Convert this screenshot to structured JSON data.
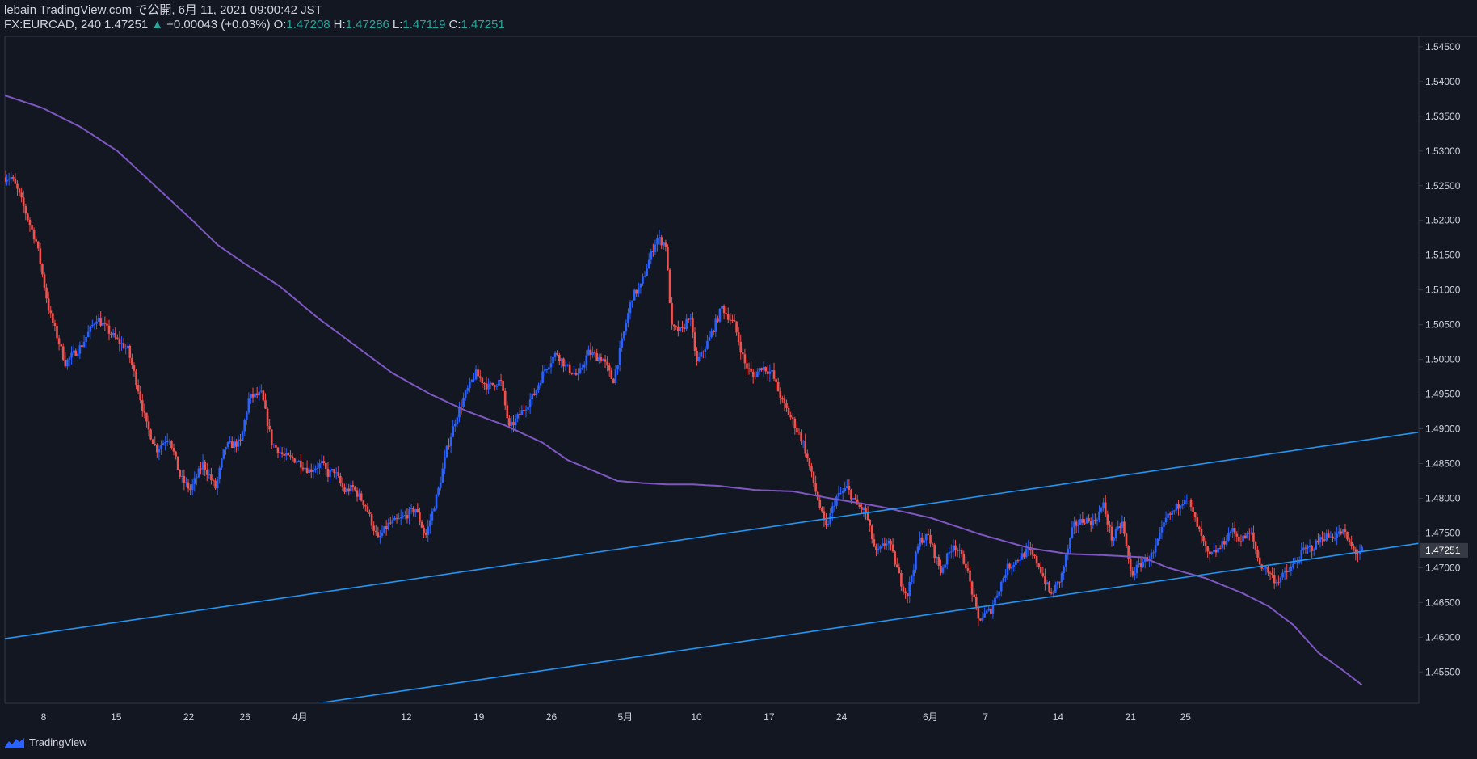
{
  "header": {
    "published": "lebain TradingView.com で公開, 6月 11, 2021 09:00:42 JST",
    "symbol": "FX:EURCAD, 240",
    "last": "1.47251",
    "change_arrow": "▲",
    "change": "+0.00043 (+0.03%)",
    "o_label": "O:",
    "o_value": "1.47208",
    "h_label": "H:",
    "h_value": "1.47286",
    "l_label": "L:",
    "l_value": "1.47119",
    "c_label": "C:",
    "c_value": "1.47251"
  },
  "footer": {
    "brand": "TradingView"
  },
  "colors": {
    "background": "#131722",
    "up": "#2962ff",
    "down": "#ef5350",
    "ma": "#7e57c2",
    "trendline": "#2196f3",
    "grid_border": "#363a45",
    "text": "#d1d4dc",
    "price_label_bg": "#363a45"
  },
  "chart_data": {
    "type": "candlestick",
    "symbol": "FX:EURCAD",
    "timeframe": "240",
    "y_ticks": [
      "1.54500",
      "1.54000",
      "1.53500",
      "1.53000",
      "1.52500",
      "1.52000",
      "1.51500",
      "1.51000",
      "1.50500",
      "1.50000",
      "1.49500",
      "1.49000",
      "1.48500",
      "1.48000",
      "1.47500",
      "1.47000",
      "1.46500",
      "1.46000",
      "1.45500"
    ],
    "y_range": [
      1.4505,
      1.5465
    ],
    "current_price_label": "1.47251",
    "x_ticks": [
      "8",
      "15",
      "22",
      "26",
      "4月",
      "12",
      "19",
      "26",
      "5月",
      "10",
      "17",
      "24",
      "6月",
      "7",
      "14",
      "21",
      "25"
    ],
    "x_range_days": [
      0,
      113
    ],
    "path_keypoints": [
      [
        0.0,
        1.5262
      ],
      [
        0.7,
        1.5262
      ],
      [
        1.3,
        1.5238
      ],
      [
        2.7,
        1.5168
      ],
      [
        3.7,
        1.507
      ],
      [
        5.0,
        1.4995
      ],
      [
        6.3,
        1.502
      ],
      [
        7.5,
        1.506
      ],
      [
        9.0,
        1.503
      ],
      [
        10.0,
        1.5014
      ],
      [
        10.8,
        1.496
      ],
      [
        11.5,
        1.4905
      ],
      [
        12.3,
        1.487
      ],
      [
        13.3,
        1.489
      ],
      [
        14.2,
        1.483
      ],
      [
        15.0,
        1.4812
      ],
      [
        16.0,
        1.485
      ],
      [
        17.0,
        1.4815
      ],
      [
        17.8,
        1.4875
      ],
      [
        19.0,
        1.488
      ],
      [
        19.7,
        1.4945
      ],
      [
        20.7,
        1.495
      ],
      [
        21.5,
        1.488
      ],
      [
        22.5,
        1.486
      ],
      [
        23.5,
        1.4855
      ],
      [
        24.5,
        1.484
      ],
      [
        25.5,
        1.485
      ],
      [
        26.0,
        1.4835
      ],
      [
        26.5,
        1.484
      ],
      [
        27.3,
        1.481
      ],
      [
        28.0,
        1.4815
      ],
      [
        29.0,
        1.479
      ],
      [
        30.0,
        1.474
      ],
      [
        30.8,
        1.4762
      ],
      [
        31.8,
        1.477
      ],
      [
        33.0,
        1.4785
      ],
      [
        33.8,
        1.4745
      ],
      [
        34.8,
        1.481
      ],
      [
        35.5,
        1.487
      ],
      [
        36.3,
        1.492
      ],
      [
        37.0,
        1.495
      ],
      [
        37.8,
        1.498
      ],
      [
        38.8,
        1.496
      ],
      [
        39.8,
        1.497
      ],
      [
        40.5,
        1.49
      ],
      [
        41.5,
        1.4925
      ],
      [
        42.5,
        1.495
      ],
      [
        43.3,
        1.4985
      ],
      [
        44.3,
        1.501
      ],
      [
        45.0,
        1.499
      ],
      [
        46.0,
        1.4975
      ],
      [
        46.8,
        1.501
      ],
      [
        48.0,
        1.5
      ],
      [
        48.8,
        1.4968
      ],
      [
        49.5,
        1.5025
      ],
      [
        50.3,
        1.509
      ],
      [
        51.0,
        1.5105
      ],
      [
        51.8,
        1.515
      ],
      [
        52.3,
        1.5175
      ],
      [
        53.0,
        1.5165
      ],
      [
        53.5,
        1.5045
      ],
      [
        54.3,
        1.504
      ],
      [
        54.9,
        1.5065
      ],
      [
        55.5,
        1.4995
      ],
      [
        56.5,
        1.503
      ],
      [
        57.5,
        1.5075
      ],
      [
        58.5,
        1.505
      ],
      [
        59.3,
        1.4995
      ],
      [
        60.0,
        1.4975
      ],
      [
        60.7,
        1.499
      ],
      [
        61.5,
        1.498
      ],
      [
        62.3,
        1.494
      ],
      [
        63.2,
        1.491
      ],
      [
        64.0,
        1.488
      ],
      [
        65.0,
        1.481
      ],
      [
        65.8,
        1.4755
      ],
      [
        66.6,
        1.48
      ],
      [
        67.5,
        1.4815
      ],
      [
        68.3,
        1.479
      ],
      [
        69.0,
        1.478
      ],
      [
        69.8,
        1.472
      ],
      [
        70.8,
        1.474
      ],
      [
        71.8,
        1.468
      ],
      [
        72.3,
        1.466
      ],
      [
        73.3,
        1.474
      ],
      [
        74.0,
        1.4745
      ],
      [
        75.0,
        1.4695
      ],
      [
        76.0,
        1.4735
      ],
      [
        77.0,
        1.4705
      ],
      [
        78.0,
        1.4625
      ],
      [
        79.0,
        1.464
      ],
      [
        80.3,
        1.47
      ],
      [
        81.0,
        1.471
      ],
      [
        82.0,
        1.4725
      ],
      [
        82.8,
        1.4705
      ],
      [
        83.8,
        1.466
      ],
      [
        84.6,
        1.4685
      ],
      [
        85.6,
        1.476
      ],
      [
        86.5,
        1.477
      ],
      [
        87.2,
        1.4765
      ],
      [
        88.0,
        1.479
      ],
      [
        88.7,
        1.474
      ],
      [
        89.5,
        1.4765
      ],
      [
        90.2,
        1.469
      ],
      [
        91.2,
        1.471
      ],
      [
        92.0,
        1.472
      ],
      [
        93.0,
        1.477
      ],
      [
        93.8,
        1.4785
      ],
      [
        94.6,
        1.4805
      ],
      [
        95.5,
        1.476
      ],
      [
        96.4,
        1.4715
      ],
      [
        97.4,
        1.473
      ],
      [
        98.2,
        1.4755
      ],
      [
        99.0,
        1.474
      ],
      [
        99.8,
        1.475
      ],
      [
        100.5,
        1.4705
      ],
      [
        101.2,
        1.4695
      ],
      [
        101.8,
        1.468
      ],
      [
        102.8,
        1.4695
      ],
      [
        103.5,
        1.471
      ],
      [
        104.0,
        1.4725
      ],
      [
        104.8,
        1.473
      ],
      [
        105.5,
        1.4745
      ],
      [
        106.2,
        1.4745
      ],
      [
        107.2,
        1.4752
      ],
      [
        107.8,
        1.473
      ],
      [
        108.3,
        1.472
      ],
      [
        108.6,
        1.4725
      ]
    ],
    "moving_average_keypoints": [
      [
        0.0,
        1.538
      ],
      [
        3.0,
        1.5362
      ],
      [
        6.0,
        1.5335
      ],
      [
        9.0,
        1.53
      ],
      [
        12.0,
        1.525
      ],
      [
        15.0,
        1.52
      ],
      [
        17.0,
        1.5165
      ],
      [
        19.0,
        1.514
      ],
      [
        22.0,
        1.5105
      ],
      [
        25.0,
        1.506
      ],
      [
        28.0,
        1.502
      ],
      [
        31.0,
        1.498
      ],
      [
        34.0,
        1.495
      ],
      [
        37.0,
        1.4925
      ],
      [
        40.0,
        1.4905
      ],
      [
        43.0,
        1.488
      ],
      [
        45.0,
        1.4855
      ],
      [
        47.0,
        1.484
      ],
      [
        49.0,
        1.4825
      ],
      [
        51.0,
        1.4822
      ],
      [
        53.0,
        1.482
      ],
      [
        55.0,
        1.482
      ],
      [
        57.0,
        1.4818
      ],
      [
        60.0,
        1.4812
      ],
      [
        63.0,
        1.481
      ],
      [
        66.0,
        1.48
      ],
      [
        70.0,
        1.4788
      ],
      [
        74.0,
        1.4772
      ],
      [
        78.0,
        1.4748
      ],
      [
        82.0,
        1.4728
      ],
      [
        85.0,
        1.472
      ],
      [
        88.0,
        1.4718
      ],
      [
        91.0,
        1.4715
      ],
      [
        93.0,
        1.47
      ],
      [
        96.0,
        1.4685
      ],
      [
        99.0,
        1.4663
      ],
      [
        101.0,
        1.4645
      ],
      [
        103.0,
        1.4618
      ],
      [
        105.0,
        1.4578
      ],
      [
        107.0,
        1.4552
      ],
      [
        108.6,
        1.453
      ]
    ],
    "trendlines": [
      {
        "name": "upper",
        "from": [
          0.0,
          1.4598
        ],
        "to": [
          113.0,
          1.4895
        ]
      },
      {
        "name": "lower",
        "from": [
          25.0,
          1.4505
        ],
        "to": [
          113.0,
          1.4735
        ]
      }
    ],
    "grid": false
  }
}
